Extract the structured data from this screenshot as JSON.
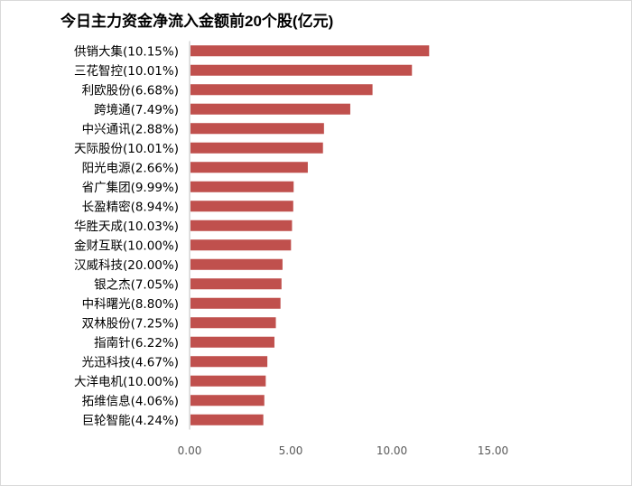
{
  "chart_data": {
    "type": "bar",
    "orientation": "horizontal",
    "title": "今日主力资金净流入金额前20个股(亿元)",
    "categories": [
      "供销大集(10.15%)",
      "三花智控(10.01%)",
      "利欧股份(6.68%)",
      "跨境通(7.49%)",
      "中兴通讯(2.88%)",
      "天际股份(10.01%)",
      "阳光电源(2.66%)",
      "省广集团(9.99%)",
      "长盈精密(8.94%)",
      "华胜天成(10.03%)",
      "金财互联(10.00%)",
      "汉威科技(20.00%)",
      "银之杰(7.05%)",
      "中科曙光(8.80%)",
      "双林股份(7.25%)",
      "指南针(6.22%)",
      "光迅科技(4.67%)",
      "大洋电机(10.00%)",
      "拓维信息(4.06%)",
      "巨轮智能(4.24%)"
    ],
    "values": [
      11.8,
      10.95,
      9.0,
      7.9,
      6.6,
      6.55,
      5.8,
      5.1,
      5.08,
      5.02,
      4.97,
      4.55,
      4.5,
      4.45,
      4.22,
      4.15,
      3.8,
      3.72,
      3.65,
      3.6
    ],
    "xlim": [
      0,
      15
    ],
    "ticks": [
      "0.00",
      "5.00",
      "10.00",
      "15.00"
    ],
    "tick_values": [
      0,
      5,
      10,
      15
    ],
    "bar_color": "#c0504d",
    "grid": false,
    "legend": "none"
  }
}
